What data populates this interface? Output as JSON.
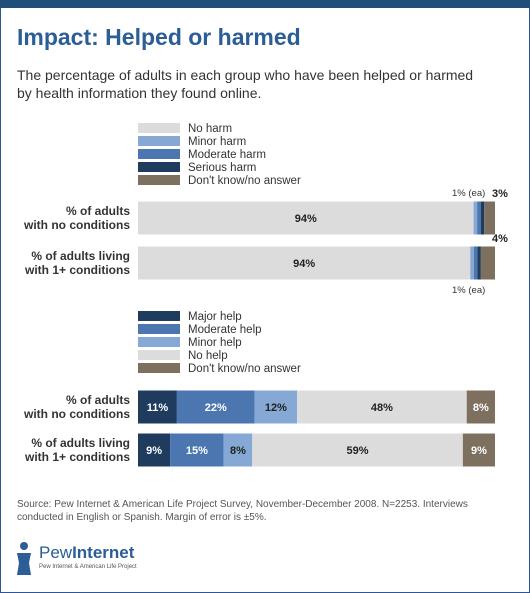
{
  "header": {
    "title": "Impact: Helped or harmed",
    "subtitle": "The percentage of adults in each group who have been helped or harmed by health information they found online."
  },
  "colors": {
    "frame": "#2f5597",
    "title": "#2b5d96",
    "very_light": "#dcdcdc",
    "light_blue": "#86a8d4",
    "mid_blue": "#4b76b0",
    "dark_navy": "#1f3b5e",
    "brown": "#7d705f"
  },
  "chart_data": [
    {
      "type": "bar",
      "orientation": "horizontal",
      "stacked": true,
      "legend_position": "top-left",
      "categories": [
        "% of adults with no conditions",
        "% of adults living with 1+ conditions"
      ],
      "category_lines": [
        [
          "% of adults",
          "with no conditions"
        ],
        [
          "% of adults living",
          "with 1+ conditions"
        ]
      ],
      "series": [
        {
          "name": "No harm",
          "color": "#dcdcdc",
          "values": [
            94,
            94
          ]
        },
        {
          "name": "Minor harm",
          "color": "#86a8d4",
          "values": [
            1,
            1
          ]
        },
        {
          "name": "Moderate harm",
          "color": "#4b76b0",
          "values": [
            1,
            1
          ]
        },
        {
          "name": "Serious harm",
          "color": "#1f3b5e",
          "values": [
            1,
            1
          ]
        },
        {
          "name": "Don't know/no answer",
          "color": "#7d705f",
          "values": [
            3,
            4
          ]
        }
      ],
      "inside_labels": [
        "94%",
        "94%"
      ],
      "annotations": {
        "ea_label": "1% (ea)",
        "dk_labels": [
          "3%",
          "4%"
        ]
      }
    },
    {
      "type": "bar",
      "orientation": "horizontal",
      "stacked": true,
      "legend_position": "top-left",
      "categories": [
        "% of adults with no conditions",
        "% of adults living with 1+ conditions"
      ],
      "category_lines": [
        [
          "% of adults",
          "with no conditions"
        ],
        [
          "% of adults living",
          "with 1+ conditions"
        ]
      ],
      "series": [
        {
          "name": "Major help",
          "color": "#1f3b5e",
          "values": [
            11,
            9
          ]
        },
        {
          "name": "Moderate help",
          "color": "#4b76b0",
          "values": [
            22,
            15
          ]
        },
        {
          "name": "Minor help",
          "color": "#86a8d4",
          "values": [
            12,
            8
          ]
        },
        {
          "name": "No help",
          "color": "#dcdcdc",
          "values": [
            48,
            59
          ]
        },
        {
          "name": "Don't know/no answer",
          "color": "#7d705f",
          "values": [
            8,
            9
          ]
        }
      ]
    }
  ],
  "footer": {
    "source": "Source: Pew Internet & American Life Project Survey, November-December 2008. N=2253. Interviews conducted in English or Spanish.  Margin of error is ±5%.",
    "logo_word_1": "Pew",
    "logo_word_2": "Internet",
    "logo_tagline": "Pew Internet & American Life Project"
  }
}
